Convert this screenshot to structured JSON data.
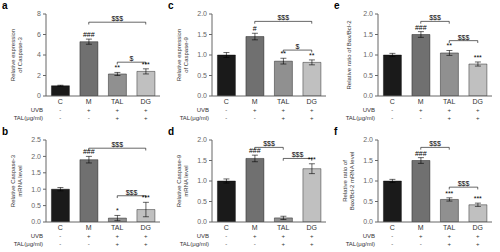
{
  "chart_data": [
    {
      "type": "bar",
      "title": "a",
      "y_label": "Relative expression\nof Caspase-3",
      "categories": [
        "C",
        "M",
        "TAL",
        "DG"
      ],
      "values": [
        1.0,
        5.3,
        2.15,
        2.4
      ],
      "errors": [
        0.05,
        0.25,
        0.15,
        0.25
      ],
      "colors": [
        "#1a1a1a",
        "#707070",
        "#909090",
        "#c0c0c0"
      ],
      "ylim": [
        0,
        8
      ],
      "yticks": [
        0,
        2,
        4,
        6,
        8
      ],
      "grid": false,
      "annotations": [
        {
          "category": "M",
          "text": "###"
        },
        {
          "category": "TAL",
          "text": "**"
        },
        {
          "category": "DG",
          "text": "***"
        }
      ],
      "brackets": [
        {
          "from": "M",
          "to": "DG",
          "text": "$$$",
          "y": 7.2
        },
        {
          "from": "TAL",
          "to": "DG",
          "text": "$",
          "y": 3.3
        }
      ],
      "rows": [
        {
          "label": "UVB",
          "values": [
            "-",
            "+",
            "+",
            "+"
          ]
        },
        {
          "label": "TAL(μg/ml)",
          "values": [
            "-",
            "-",
            "+",
            "+"
          ]
        }
      ]
    },
    {
      "type": "bar",
      "title": "c",
      "y_label": "Relative expression\nof Caspase-9",
      "categories": [
        "C",
        "M",
        "TAL",
        "DG"
      ],
      "values": [
        1.0,
        1.45,
        0.85,
        0.82
      ],
      "errors": [
        0.06,
        0.08,
        0.07,
        0.06
      ],
      "colors": [
        "#1a1a1a",
        "#707070",
        "#909090",
        "#c0c0c0"
      ],
      "ylim": [
        0,
        2.0
      ],
      "yticks": [
        {
          "value": 0,
          "label": "0.0"
        },
        0.5,
        {
          "value": 1,
          "label": "1.0"
        },
        1.5,
        {
          "value": 2,
          "label": "2.0"
        }
      ],
      "grid": false,
      "annotations": [
        {
          "category": "M",
          "text": "#"
        },
        {
          "category": "TAL",
          "text": "**"
        },
        {
          "category": "DG",
          "text": "**"
        }
      ],
      "brackets": [
        {
          "from": "M",
          "to": "DG",
          "text": "$$$",
          "y": 1.82
        },
        {
          "from": "TAL",
          "to": "DG",
          "text": "$",
          "y": 1.12
        }
      ],
      "rows": [
        {
          "label": "UVB",
          "values": [
            "-",
            "+",
            "+",
            "+"
          ]
        },
        {
          "label": "TAL(μg/ml)",
          "values": [
            "-",
            "-",
            "+",
            "+"
          ]
        }
      ]
    },
    {
      "type": "bar",
      "title": "e",
      "y_label": "Relative ratio of Bax/Bcl-2",
      "categories": [
        "C",
        "M",
        "TAL",
        "DG"
      ],
      "values": [
        1.0,
        1.5,
        1.05,
        0.78
      ],
      "errors": [
        0.04,
        0.07,
        0.06,
        0.05
      ],
      "colors": [
        "#1a1a1a",
        "#707070",
        "#909090",
        "#c0c0c0"
      ],
      "ylim": [
        0,
        2.0
      ],
      "yticks": [
        {
          "value": 0,
          "label": "0.0"
        },
        0.5,
        {
          "value": 1,
          "label": "1.0"
        },
        1.5,
        {
          "value": 2,
          "label": "2.0"
        }
      ],
      "grid": false,
      "annotations": [
        {
          "category": "M",
          "text": "###"
        },
        {
          "category": "TAL",
          "text": "**"
        },
        {
          "category": "DG",
          "text": "***"
        }
      ],
      "brackets": [
        {
          "from": "M",
          "to": "TAL",
          "text": "$$$",
          "y": 1.82
        },
        {
          "from": "TAL",
          "to": "DG",
          "text": "$$$",
          "y": 1.35
        }
      ],
      "rows": [
        {
          "label": "UVB",
          "values": [
            "-",
            "+",
            "+",
            "+"
          ]
        },
        {
          "label": "TAL(μg/ml)",
          "values": [
            "-",
            "-",
            "+",
            "+"
          ]
        }
      ]
    },
    {
      "type": "bar",
      "title": "b",
      "y_label": "Relative Caspase-3\nmRNA level",
      "categories": [
        "C",
        "M",
        "TAL",
        "DG"
      ],
      "values": [
        1.0,
        1.9,
        0.12,
        0.38
      ],
      "errors": [
        0.05,
        0.1,
        0.08,
        0.22
      ],
      "colors": [
        "#1a1a1a",
        "#707070",
        "#909090",
        "#c0c0c0"
      ],
      "ylim": [
        0,
        2.5
      ],
      "yticks": [
        {
          "value": 0,
          "label": "0.0"
        },
        0.5,
        {
          "value": 1,
          "label": "1.0"
        },
        1.5,
        {
          "value": 2,
          "label": "2.0"
        },
        2.5
      ],
      "grid": false,
      "annotations": [
        {
          "category": "M",
          "text": "###"
        },
        {
          "category": "TAL",
          "text": "*"
        },
        {
          "category": "DG",
          "text": "***"
        }
      ],
      "brackets": [
        {
          "from": "M",
          "to": "DG",
          "text": "$$$",
          "y": 2.25
        },
        {
          "from": "TAL",
          "to": "DG",
          "text": "$$$",
          "y": 0.8
        }
      ],
      "rows": [
        {
          "label": "UVB",
          "values": [
            "-",
            "+",
            "+",
            "+"
          ]
        },
        {
          "label": "TAL(μg/ml)",
          "values": [
            "-",
            "-",
            "+",
            "+"
          ]
        }
      ]
    },
    {
      "type": "bar",
      "title": "d",
      "y_label": "Relative Caspase-9\nmRNA level",
      "categories": [
        "C",
        "M",
        "TAL",
        "DG"
      ],
      "values": [
        1.0,
        1.55,
        0.1,
        1.3
      ],
      "errors": [
        0.05,
        0.08,
        0.04,
        0.12
      ],
      "colors": [
        "#1a1a1a",
        "#707070",
        "#909090",
        "#c0c0c0"
      ],
      "ylim": [
        0,
        2.0
      ],
      "yticks": [
        {
          "value": 0,
          "label": "0.0"
        },
        0.5,
        {
          "value": 1,
          "label": "1.0"
        },
        1.5,
        {
          "value": 2,
          "label": "2.0"
        }
      ],
      "grid": false,
      "annotations": [
        {
          "category": "M",
          "text": "###"
        },
        {
          "category": "DG",
          "text": "***"
        }
      ],
      "brackets": [
        {
          "from": "M",
          "to": "TAL",
          "text": "$$$",
          "y": 1.82
        },
        {
          "from": "TAL",
          "to": "DG",
          "text": "$$$",
          "y": 1.55
        }
      ],
      "rows": [
        {
          "label": "UVB",
          "values": [
            "-",
            "+",
            "+",
            "+"
          ]
        },
        {
          "label": "TAL(μg/ml)",
          "values": [
            "-",
            "-",
            "+",
            "+"
          ]
        }
      ]
    },
    {
      "type": "bar",
      "title": "f",
      "y_label": "Relative ratio of\nBax/Bcl-2 mRNA level",
      "categories": [
        "C",
        "M",
        "TAL",
        "DG"
      ],
      "values": [
        1.0,
        1.5,
        0.55,
        0.42
      ],
      "errors": [
        0.04,
        0.07,
        0.04,
        0.04
      ],
      "colors": [
        "#1a1a1a",
        "#707070",
        "#909090",
        "#c0c0c0"
      ],
      "ylim": [
        0,
        2.0
      ],
      "yticks": [
        {
          "value": 0,
          "label": "0.0"
        },
        0.5,
        {
          "value": 1,
          "label": "1.0"
        },
        1.5,
        {
          "value": 2,
          "label": "2.0"
        }
      ],
      "grid": false,
      "annotations": [
        {
          "category": "M",
          "text": "###"
        },
        {
          "category": "TAL",
          "text": "***"
        },
        {
          "category": "DG",
          "text": "***"
        }
      ],
      "brackets": [
        {
          "from": "M",
          "to": "TAL",
          "text": "$$$",
          "y": 1.82
        },
        {
          "from": "TAL",
          "to": "DG",
          "text": "$$$",
          "y": 0.85
        }
      ],
      "rows": [
        {
          "label": "UVB",
          "values": [
            "-",
            "+",
            "+",
            "+"
          ]
        },
        {
          "label": "TAL(μg/ml)",
          "values": [
            "-",
            "-",
            "+",
            "+"
          ]
        }
      ]
    }
  ]
}
